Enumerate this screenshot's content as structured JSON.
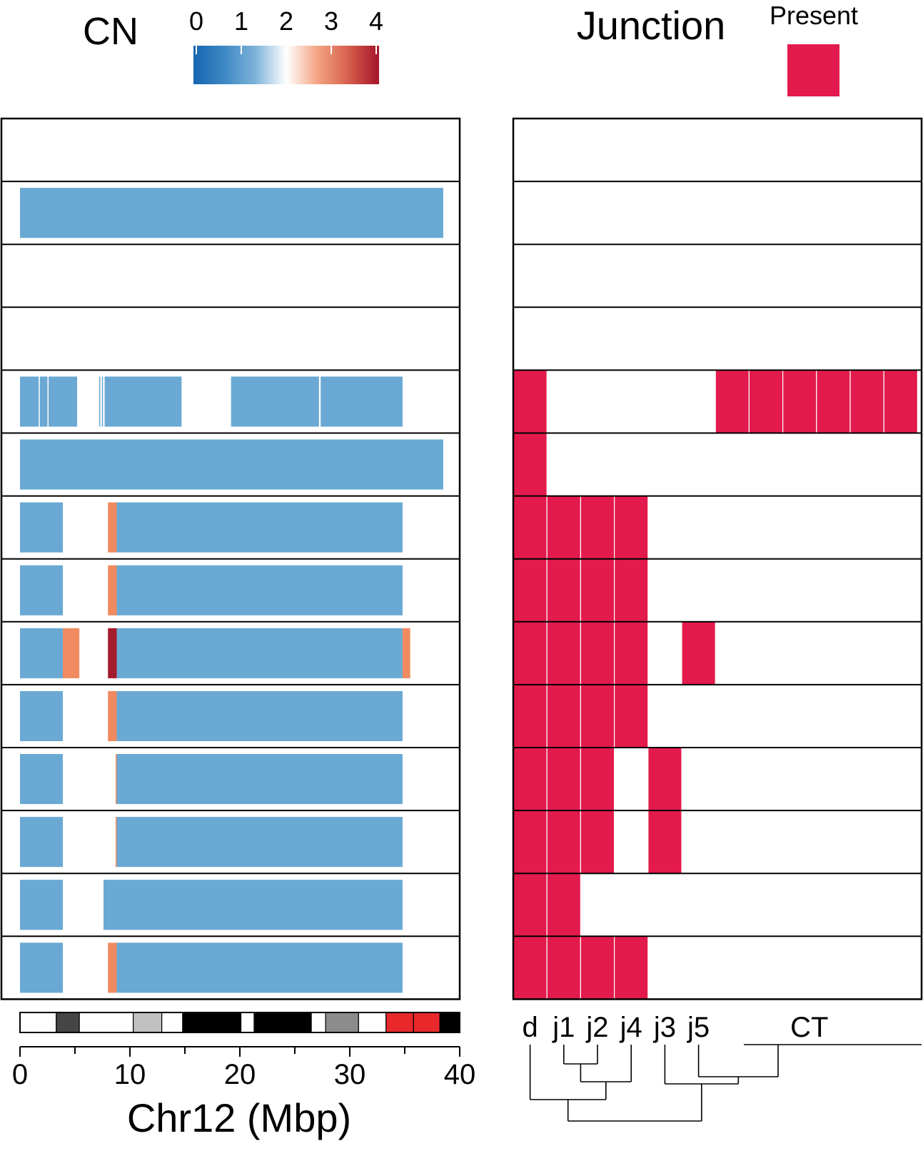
{
  "cn_legend": {
    "title": "CN",
    "ticks": [
      "0",
      "1",
      "2",
      "3",
      "4"
    ],
    "colors": [
      "#1565b0",
      "#3f89c4",
      "#7db2d8",
      "#ffffff",
      "#f4a582",
      "#d6604d",
      "#a5142a"
    ]
  },
  "junction_legend": {
    "title": "Junction",
    "label": "Present",
    "color": "#e31a4c"
  },
  "cn_color": "#69a9d3",
  "gain_color": "#f08a60",
  "high_gain_color": "#a51c2d",
  "chart_data": [
    {
      "type": "heatmap",
      "title": "CN",
      "xlabel": "Chr12 (Mbp)",
      "xlim": [
        0,
        40
      ],
      "xticks": [
        "0",
        "10",
        "20",
        "30",
        "40"
      ],
      "color_scale": {
        "min": 0,
        "max": 4,
        "neutral": 2
      },
      "rows": [
        {
          "segments": []
        },
        {
          "segments": [
            {
              "start": 0,
              "end": 38.5,
              "cn": 1
            }
          ]
        },
        {
          "segments": []
        },
        {
          "segments": []
        },
        {
          "segments": [
            {
              "start": 0,
              "end": 1.7,
              "cn": 1
            },
            {
              "start": 1.8,
              "end": 2.5,
              "cn": 1
            },
            {
              "start": 2.6,
              "end": 5.2,
              "cn": 1
            },
            {
              "start": 7.2,
              "end": 7.3,
              "cn": 1
            },
            {
              "start": 7.45,
              "end": 7.55,
              "cn": 1
            },
            {
              "start": 7.7,
              "end": 14.7,
              "cn": 1
            },
            {
              "start": 19.2,
              "end": 27.2,
              "cn": 1
            },
            {
              "start": 27.35,
              "end": 34.8,
              "cn": 1
            }
          ]
        },
        {
          "segments": [
            {
              "start": 0,
              "end": 38.5,
              "cn": 1
            }
          ]
        },
        {
          "segments": [
            {
              "start": 0,
              "end": 3.9,
              "cn": 1
            },
            {
              "start": 8.0,
              "end": 8.8,
              "cn": 3
            },
            {
              "start": 8.8,
              "end": 34.8,
              "cn": 1
            }
          ]
        },
        {
          "segments": [
            {
              "start": 0,
              "end": 3.9,
              "cn": 1
            },
            {
              "start": 8.0,
              "end": 8.8,
              "cn": 3
            },
            {
              "start": 8.8,
              "end": 34.8,
              "cn": 1
            }
          ]
        },
        {
          "segments": [
            {
              "start": 0,
              "end": 3.9,
              "cn": 1
            },
            {
              "start": 3.9,
              "end": 5.4,
              "cn": 3
            },
            {
              "start": 8.0,
              "end": 8.8,
              "cn": 4
            },
            {
              "start": 8.8,
              "end": 34.8,
              "cn": 1
            },
            {
              "start": 34.8,
              "end": 35.5,
              "cn": 3
            }
          ]
        },
        {
          "segments": [
            {
              "start": 0,
              "end": 3.9,
              "cn": 1
            },
            {
              "start": 8.0,
              "end": 8.8,
              "cn": 3
            },
            {
              "start": 8.8,
              "end": 34.8,
              "cn": 1
            }
          ]
        },
        {
          "segments": [
            {
              "start": 0,
              "end": 3.9,
              "cn": 1
            },
            {
              "start": 8.7,
              "end": 8.8,
              "cn": 3
            },
            {
              "start": 8.8,
              "end": 34.8,
              "cn": 1
            }
          ]
        },
        {
          "segments": [
            {
              "start": 0,
              "end": 3.9,
              "cn": 1
            },
            {
              "start": 8.7,
              "end": 8.8,
              "cn": 3
            },
            {
              "start": 8.8,
              "end": 34.8,
              "cn": 1
            }
          ]
        },
        {
          "segments": [
            {
              "start": 0,
              "end": 3.9,
              "cn": 1
            },
            {
              "start": 7.6,
              "end": 34.8,
              "cn": 1
            }
          ]
        },
        {
          "segments": [
            {
              "start": 0,
              "end": 3.9,
              "cn": 1
            },
            {
              "start": 8.0,
              "end": 8.8,
              "cn": 3
            },
            {
              "start": 8.8,
              "end": 34.8,
              "cn": 1
            }
          ]
        }
      ],
      "ideogram": [
        {
          "start": 0,
          "end": 3.3,
          "stain": "gneg"
        },
        {
          "start": 3.3,
          "end": 5.4,
          "stain": "gpos75"
        },
        {
          "start": 5.4,
          "end": 10.3,
          "stain": "gneg"
        },
        {
          "start": 10.3,
          "end": 12.9,
          "stain": "gpos25"
        },
        {
          "start": 12.9,
          "end": 14.8,
          "stain": "gneg"
        },
        {
          "start": 14.8,
          "end": 20.1,
          "stain": "gpos100"
        },
        {
          "start": 20.1,
          "end": 21.3,
          "stain": "gneg"
        },
        {
          "start": 21.3,
          "end": 26.5,
          "stain": "gpos100"
        },
        {
          "start": 26.5,
          "end": 27.8,
          "stain": "gneg"
        },
        {
          "start": 27.8,
          "end": 30.8,
          "stain": "gpos50"
        },
        {
          "start": 30.8,
          "end": 33.3,
          "stain": "gneg"
        },
        {
          "start": 33.3,
          "end": 35.8,
          "stain": "acen"
        },
        {
          "start": 35.8,
          "end": 38.2,
          "stain": "acen"
        },
        {
          "start": 38.2,
          "end": 40,
          "stain": "gvar"
        }
      ]
    },
    {
      "type": "heatmap",
      "title": "Junction",
      "columns": [
        "d",
        "j1",
        "j2",
        "j4",
        "j3",
        "j5",
        "CT",
        "CT",
        "CT",
        "CT",
        "CT",
        "CT"
      ],
      "column_labels": [
        {
          "text": "d",
          "color": "#000000"
        },
        {
          "text": "j1",
          "color": "#c8102e"
        },
        {
          "text": "j2",
          "color": "#b5a97a"
        },
        {
          "text": "j4",
          "color": "#e888aa"
        },
        {
          "text": "j3",
          "color": "#3b8a4a"
        },
        {
          "text": "j5",
          "color": "#6f93c8"
        },
        {
          "text": "CT",
          "color": "#f08a24"
        }
      ],
      "rows": [
        [
          0,
          0,
          0,
          0,
          0,
          0,
          0,
          0,
          0,
          0,
          0,
          0
        ],
        [
          0,
          0,
          0,
          0,
          0,
          0,
          0,
          0,
          0,
          0,
          0,
          0
        ],
        [
          0,
          0,
          0,
          0,
          0,
          0,
          0,
          0,
          0,
          0,
          0,
          0
        ],
        [
          0,
          0,
          0,
          0,
          0,
          0,
          0,
          0,
          0,
          0,
          0,
          0
        ],
        [
          1,
          0,
          0,
          0,
          0,
          0,
          1,
          1,
          1,
          1,
          1,
          1
        ],
        [
          1,
          0,
          0,
          0,
          0,
          0,
          0,
          0,
          0,
          0,
          0,
          0
        ],
        [
          1,
          1,
          1,
          1,
          0,
          0,
          0,
          0,
          0,
          0,
          0,
          0
        ],
        [
          1,
          1,
          1,
          1,
          0,
          0,
          0,
          0,
          0,
          0,
          0,
          0
        ],
        [
          1,
          1,
          1,
          1,
          0,
          1,
          0,
          0,
          0,
          0,
          0,
          0
        ],
        [
          1,
          1,
          1,
          1,
          0,
          0,
          0,
          0,
          0,
          0,
          0,
          0
        ],
        [
          1,
          1,
          1,
          0,
          1,
          0,
          0,
          0,
          0,
          0,
          0,
          0
        ],
        [
          1,
          1,
          1,
          0,
          1,
          0,
          0,
          0,
          0,
          0,
          0,
          0
        ],
        [
          1,
          1,
          0,
          0,
          0,
          0,
          0,
          0,
          0,
          0,
          0,
          0
        ],
        [
          1,
          1,
          1,
          1,
          0,
          0,
          0,
          0,
          0,
          0,
          0,
          0
        ]
      ]
    }
  ]
}
